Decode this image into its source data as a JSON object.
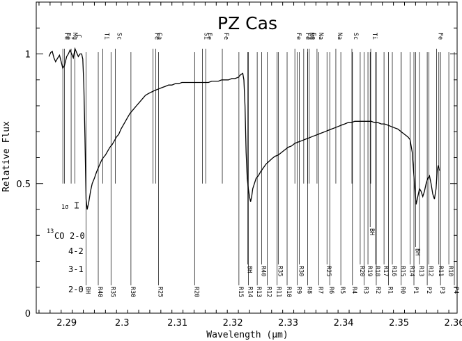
{
  "chart_data": {
    "type": "line",
    "title": "PZ Cas",
    "xlabel": "Wavelength (μm)",
    "ylabel": "Relative Flux",
    "xlim": [
      2.2845,
      2.3605
    ],
    "ylim": [
      0,
      1.2
    ],
    "x_ticks": [
      "2.29",
      "2.3",
      "2.31",
      "2.32",
      "2.33",
      "2.34",
      "2.35",
      "2.36"
    ],
    "y_ticks": [
      "0",
      "0.5",
      "1"
    ],
    "sigma_label": "1σ",
    "band_labels": {
      "isotope": "13",
      "molecule": "CO",
      "bands": [
        "2-0",
        "4-2",
        "3-1",
        "2-0"
      ]
    },
    "atomic_lines": [
      {
        "label": "Fe",
        "x": 2.2893
      },
      {
        "label": "Fe",
        "x": 2.2896
      },
      {
        "label": "Mg",
        "x": 2.2908
      },
      {
        "label": "C",
        "x": 2.2915
      },
      {
        "label": "Ti",
        "x": 2.2965
      },
      {
        "label": "Sc",
        "x": 2.2988
      },
      {
        "label": "Fe",
        "x": 2.3056
      },
      {
        "label": "Ca",
        "x": 2.3061
      },
      {
        "label": "Si",
        "x": 2.3145
      },
      {
        "label": "Fe",
        "x": 2.3151
      },
      {
        "label": "Fe",
        "x": 2.3181
      },
      {
        "label": "Fe",
        "x": 2.3312
      },
      {
        "label": "Fe",
        "x": 2.3328
      },
      {
        "label": "Mg",
        "x": 2.3335
      },
      {
        "label": "Fe",
        "x": 2.3338
      },
      {
        "label": "Na",
        "x": 2.3352
      },
      {
        "label": "Na",
        "x": 2.3386
      },
      {
        "label": "Sc",
        "x": 2.3415
      },
      {
        "label": "Ti",
        "x": 2.3449
      },
      {
        "label": "Fe",
        "x": 2.3568
      }
    ],
    "co_20": [
      {
        "label": "BH",
        "x": 2.2935
      },
      {
        "label": "R40",
        "x": 2.2957
      },
      {
        "label": "R35",
        "x": 2.298
      },
      {
        "label": "R30",
        "x": 2.3016
      },
      {
        "label": "R25",
        "x": 2.3066
      },
      {
        "label": "R20",
        "x": 2.3131
      },
      {
        "label": "R15",
        "x": 2.3211
      },
      {
        "label": "R14",
        "x": 2.3228
      },
      {
        "label": "R13",
        "x": 2.3244
      },
      {
        "label": "R12",
        "x": 2.3262
      },
      {
        "label": "R11",
        "x": 2.328
      },
      {
        "label": "R10",
        "x": 2.3298
      },
      {
        "label": "R9",
        "x": 2.3316
      },
      {
        "label": "R8",
        "x": 2.3335
      },
      {
        "label": "R7",
        "x": 2.3355
      },
      {
        "label": "R6",
        "x": 2.3375
      },
      {
        "label": "R5",
        "x": 2.3395
      },
      {
        "label": "R4",
        "x": 2.3416
      },
      {
        "label": "R3",
        "x": 2.3437
      },
      {
        "label": "R2",
        "x": 2.3459
      },
      {
        "label": "R1",
        "x": 2.3481
      },
      {
        "label": "R0",
        "x": 2.3504
      },
      {
        "label": "P1",
        "x": 2.3527
      },
      {
        "label": "P2",
        "x": 2.3551
      },
      {
        "label": "P3",
        "x": 2.3575
      },
      {
        "label": "P4",
        "x": 2.36
      }
    ],
    "co_31": [
      {
        "label": "BH",
        "x": 2.3227
      },
      {
        "label": "R40",
        "x": 2.3252
      },
      {
        "label": "R35",
        "x": 2.3282
      },
      {
        "label": "R30",
        "x": 2.332
      },
      {
        "label": "R25",
        "x": 2.337
      },
      {
        "label": "R20",
        "x": 2.343
      },
      {
        "label": "R19",
        "x": 2.3444
      },
      {
        "label": "R18",
        "x": 2.3458
      },
      {
        "label": "R17",
        "x": 2.3473
      },
      {
        "label": "R16",
        "x": 2.3488
      },
      {
        "label": "R15",
        "x": 2.3504
      },
      {
        "label": "R14",
        "x": 2.352
      },
      {
        "label": "R13",
        "x": 2.3537
      },
      {
        "label": "R12",
        "x": 2.3554
      },
      {
        "label": "R11",
        "x": 2.3572
      },
      {
        "label": "R10",
        "x": 2.359
      }
    ],
    "co_42": [
      {
        "label": "BH",
        "x": 2.353
      }
    ],
    "co13_20": [
      {
        "label": "BH",
        "x": 2.3448
      }
    ],
    "spectrum": [
      [
        2.2868,
        0.99
      ],
      [
        2.2871,
        1.005
      ],
      [
        2.2874,
        1.01
      ],
      [
        2.2877,
        0.985
      ],
      [
        2.288,
        0.97
      ],
      [
        2.2884,
        0.985
      ],
      [
        2.2887,
        0.995
      ],
      [
        2.289,
        0.97
      ],
      [
        2.2893,
        0.945
      ],
      [
        2.2896,
        0.955
      ],
      [
        2.29,
        0.99
      ],
      [
        2.2903,
        1.0
      ],
      [
        2.2906,
        1.015
      ],
      [
        2.2909,
        1.0
      ],
      [
        2.2912,
        0.985
      ],
      [
        2.2915,
        1.02
      ],
      [
        2.2918,
        1.005
      ],
      [
        2.2921,
        0.99
      ],
      [
        2.2924,
        1.0
      ],
      [
        2.2927,
        1.0
      ],
      [
        2.2929,
        0.98
      ],
      [
        2.2931,
        0.88
      ],
      [
        2.2933,
        0.68
      ],
      [
        2.2935,
        0.44
      ],
      [
        2.2937,
        0.4
      ],
      [
        2.294,
        0.43
      ],
      [
        2.2943,
        0.47
      ],
      [
        2.2946,
        0.5
      ],
      [
        2.295,
        0.52
      ],
      [
        2.2954,
        0.545
      ],
      [
        2.2957,
        0.56
      ],
      [
        2.296,
        0.575
      ],
      [
        2.2963,
        0.59
      ],
      [
        2.2966,
        0.6
      ],
      [
        2.297,
        0.61
      ],
      [
        2.2974,
        0.625
      ],
      [
        2.2978,
        0.64
      ],
      [
        2.2982,
        0.65
      ],
      [
        2.2986,
        0.665
      ],
      [
        2.299,
        0.68
      ],
      [
        2.2994,
        0.69
      ],
      [
        2.2998,
        0.71
      ],
      [
        2.3002,
        0.725
      ],
      [
        2.3006,
        0.74
      ],
      [
        2.301,
        0.755
      ],
      [
        2.3014,
        0.77
      ],
      [
        2.3018,
        0.78
      ],
      [
        2.3022,
        0.79
      ],
      [
        2.3026,
        0.8
      ],
      [
        2.303,
        0.81
      ],
      [
        2.3034,
        0.82
      ],
      [
        2.3038,
        0.83
      ],
      [
        2.3042,
        0.84
      ],
      [
        2.3046,
        0.845
      ],
      [
        2.305,
        0.85
      ],
      [
        2.3055,
        0.855
      ],
      [
        2.306,
        0.86
      ],
      [
        2.3066,
        0.865
      ],
      [
        2.3072,
        0.87
      ],
      [
        2.3078,
        0.875
      ],
      [
        2.3084,
        0.88
      ],
      [
        2.309,
        0.88
      ],
      [
        2.3096,
        0.885
      ],
      [
        2.3102,
        0.885
      ],
      [
        2.3108,
        0.89
      ],
      [
        2.3114,
        0.89
      ],
      [
        2.312,
        0.89
      ],
      [
        2.3126,
        0.89
      ],
      [
        2.3132,
        0.89
      ],
      [
        2.3138,
        0.89
      ],
      [
        2.3144,
        0.89
      ],
      [
        2.315,
        0.89
      ],
      [
        2.3156,
        0.89
      ],
      [
        2.3162,
        0.895
      ],
      [
        2.3168,
        0.895
      ],
      [
        2.3174,
        0.895
      ],
      [
        2.318,
        0.9
      ],
      [
        2.3186,
        0.9
      ],
      [
        2.3192,
        0.9
      ],
      [
        2.3198,
        0.905
      ],
      [
        2.3204,
        0.905
      ],
      [
        2.321,
        0.91
      ],
      [
        2.3214,
        0.92
      ],
      [
        2.3218,
        0.925
      ],
      [
        2.322,
        0.9
      ],
      [
        2.3222,
        0.8
      ],
      [
        2.3224,
        0.62
      ],
      [
        2.3226,
        0.52
      ],
      [
        2.3228,
        0.48
      ],
      [
        2.323,
        0.45
      ],
      [
        2.3232,
        0.43
      ],
      [
        2.3234,
        0.45
      ],
      [
        2.3236,
        0.48
      ],
      [
        2.3239,
        0.5
      ],
      [
        2.3242,
        0.52
      ],
      [
        2.3246,
        0.53
      ],
      [
        2.325,
        0.545
      ],
      [
        2.3255,
        0.56
      ],
      [
        2.326,
        0.575
      ],
      [
        2.3265,
        0.585
      ],
      [
        2.327,
        0.595
      ],
      [
        2.3276,
        0.605
      ],
      [
        2.3282,
        0.61
      ],
      [
        2.3288,
        0.62
      ],
      [
        2.3294,
        0.63
      ],
      [
        2.33,
        0.64
      ],
      [
        2.3306,
        0.645
      ],
      [
        2.3312,
        0.655
      ],
      [
        2.3318,
        0.66
      ],
      [
        2.3324,
        0.665
      ],
      [
        2.333,
        0.67
      ],
      [
        2.3336,
        0.675
      ],
      [
        2.3342,
        0.68
      ],
      [
        2.3348,
        0.685
      ],
      [
        2.3354,
        0.69
      ],
      [
        2.336,
        0.695
      ],
      [
        2.3366,
        0.7
      ],
      [
        2.3372,
        0.705
      ],
      [
        2.3378,
        0.71
      ],
      [
        2.3384,
        0.715
      ],
      [
        2.339,
        0.72
      ],
      [
        2.3396,
        0.725
      ],
      [
        2.3402,
        0.73
      ],
      [
        2.3408,
        0.735
      ],
      [
        2.3414,
        0.735
      ],
      [
        2.342,
        0.74
      ],
      [
        2.3426,
        0.74
      ],
      [
        2.3432,
        0.74
      ],
      [
        2.3438,
        0.74
      ],
      [
        2.3444,
        0.74
      ],
      [
        2.345,
        0.74
      ],
      [
        2.3456,
        0.735
      ],
      [
        2.3462,
        0.735
      ],
      [
        2.3468,
        0.73
      ],
      [
        2.3474,
        0.73
      ],
      [
        2.348,
        0.725
      ],
      [
        2.3486,
        0.72
      ],
      [
        2.3492,
        0.715
      ],
      [
        2.3498,
        0.71
      ],
      [
        2.3504,
        0.7
      ],
      [
        2.351,
        0.69
      ],
      [
        2.3516,
        0.68
      ],
      [
        2.352,
        0.67
      ],
      [
        2.3524,
        0.62
      ],
      [
        2.3528,
        0.5
      ],
      [
        2.3531,
        0.42
      ],
      [
        2.3534,
        0.45
      ],
      [
        2.3537,
        0.48
      ],
      [
        2.354,
        0.47
      ],
      [
        2.3543,
        0.45
      ],
      [
        2.3546,
        0.47
      ],
      [
        2.3549,
        0.5
      ],
      [
        2.3552,
        0.52
      ],
      [
        2.3555,
        0.53
      ],
      [
        2.3558,
        0.5
      ],
      [
        2.3561,
        0.46
      ],
      [
        2.3564,
        0.44
      ],
      [
        2.3567,
        0.48
      ],
      [
        2.3569,
        0.55
      ],
      [
        2.3571,
        0.57
      ],
      [
        2.3573,
        0.55
      ]
    ]
  }
}
